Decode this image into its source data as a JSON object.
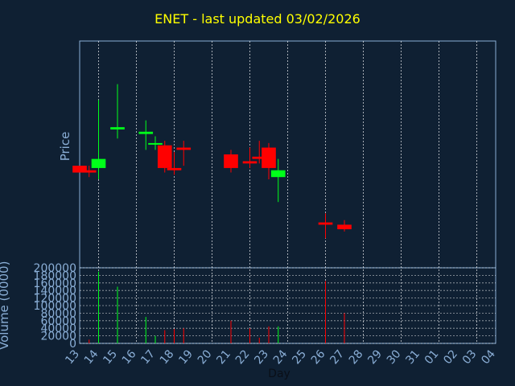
{
  "title": "ENET - last updated 03/02/2026",
  "chart_data": {
    "type": "candlestick",
    "ylabel_price": "Price",
    "ylabel_volume": "Volume (0000)",
    "xlabel": "Day",
    "x_ticks": [
      "13",
      "14",
      "15",
      "16",
      "17",
      "18",
      "19",
      "20",
      "21",
      "22",
      "23",
      "24",
      "25",
      "26",
      "27",
      "28",
      "29",
      "30",
      "31",
      "01",
      "02",
      "03",
      "04"
    ],
    "volume_ticks": [
      "0",
      "20000",
      "40000",
      "60000",
      "80000",
      "100000",
      "120000",
      "140000",
      "160000",
      "180000",
      "200000"
    ],
    "volume_ylim": [
      0,
      200000
    ],
    "price_ylim": [
      0,
      100
    ],
    "grid": true,
    "candles": [
      {
        "day": "13",
        "open": 45,
        "high": 45,
        "low": 42,
        "close": 42,
        "volume": 0
      },
      {
        "day": "13.5",
        "open": 43,
        "high": 45,
        "low": 40,
        "close": 42,
        "volume": 10000
      },
      {
        "day": "14",
        "open": 44,
        "high": 74,
        "low": 39,
        "close": 48,
        "volume": 190000
      },
      {
        "day": "15",
        "open": 61,
        "high": 81,
        "low": 57,
        "close": 62,
        "volume": 150000
      },
      {
        "day": "16.5",
        "open": 59,
        "high": 65,
        "low": 52,
        "close": 60,
        "volume": 70000
      },
      {
        "day": "17",
        "open": 55,
        "high": 58,
        "low": 52,
        "close": 55,
        "volume": 20000
      },
      {
        "day": "17.5",
        "open": 54,
        "high": 56,
        "low": 42,
        "close": 44,
        "volume": 35000
      },
      {
        "day": "18",
        "open": 44,
        "high": 51,
        "low": 41,
        "close": 43,
        "volume": 38000
      },
      {
        "day": "18.5",
        "open": 53,
        "high": 56,
        "low": 45,
        "close": 52,
        "volume": 40000
      },
      {
        "day": "21",
        "open": 50,
        "high": 52,
        "low": 42,
        "close": 44,
        "volume": 60000
      },
      {
        "day": "22",
        "open": 47,
        "high": 53,
        "low": 44,
        "close": 46,
        "volume": 40000
      },
      {
        "day": "22.5",
        "open": 49,
        "high": 56,
        "low": 46,
        "close": 48,
        "volume": 15000
      },
      {
        "day": "23",
        "open": 53,
        "high": 55,
        "low": 39,
        "close": 44,
        "volume": 45000
      },
      {
        "day": "23.5",
        "open": 40,
        "high": 48,
        "low": 29,
        "close": 43,
        "volume": 45000
      },
      {
        "day": "26",
        "open": 20,
        "high": 24,
        "low": 13,
        "close": 19,
        "volume": 165000
      },
      {
        "day": "27",
        "open": 19,
        "high": 21,
        "low": 16,
        "close": 17,
        "volume": 80000
      }
    ]
  }
}
